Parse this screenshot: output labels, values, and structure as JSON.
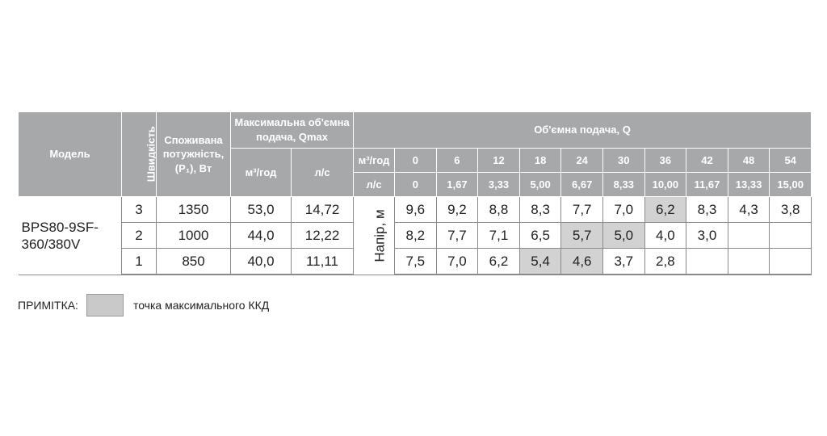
{
  "table": {
    "header": {
      "model": "Модель",
      "speed": "Швидкість",
      "power": "Споживана потужність, (P₁), Вт",
      "qmax": "Максимальна об'ємна подача, Qmax",
      "qmax_units": [
        "м³/год",
        "л/с"
      ],
      "flow": "Об'ємна подача, Q",
      "flow_units": [
        "м³/год",
        "л/с"
      ],
      "flow_m3h": [
        "0",
        "6",
        "12",
        "18",
        "24",
        "30",
        "36",
        "42",
        "48",
        "54"
      ],
      "flow_ls": [
        "0",
        "1,67",
        "3,33",
        "5,00",
        "6,67",
        "8,33",
        "10,00",
        "11,67",
        "13,33",
        "15,00"
      ]
    },
    "model": "BPS80-9SF-360/380V",
    "head_label": "Напір, м",
    "rows": [
      {
        "speed": "3",
        "power": "1350",
        "qmax_m3h": "53,0",
        "qmax_ls": "14,72",
        "head": [
          "9,6",
          "9,2",
          "8,8",
          "8,3",
          "7,7",
          "7,0",
          "6,2",
          "8,3",
          "4,3",
          "3,8"
        ],
        "highlight": [
          6
        ]
      },
      {
        "speed": "2",
        "power": "1000",
        "qmax_m3h": "44,0",
        "qmax_ls": "12,22",
        "head": [
          "8,2",
          "7,7",
          "7,1",
          "6,5",
          "5,7",
          "5,0",
          "4,0",
          "3,0"
        ],
        "highlight": [
          4,
          5
        ]
      },
      {
        "speed": "1",
        "power": "850",
        "qmax_m3h": "40,0",
        "qmax_ls": "11,11",
        "head": [
          "7,5",
          "7,0",
          "6,2",
          "5,4",
          "4,6",
          "3,7",
          "2,8"
        ],
        "highlight": [
          3,
          4
        ]
      }
    ]
  },
  "note": {
    "label": "ПРИМІТКА:",
    "text": "точка максимального ККД"
  }
}
